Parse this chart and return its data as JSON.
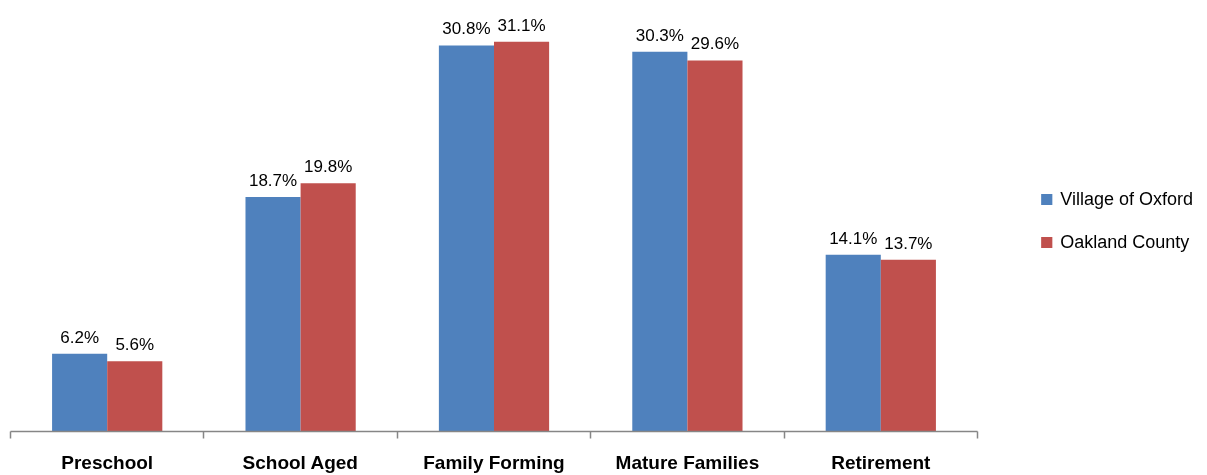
{
  "chart_data": {
    "type": "bar",
    "categories": [
      "Preschool",
      "School Aged",
      "Family Forming",
      "Mature Families",
      "Retirement"
    ],
    "series": [
      {
        "name": "Village of Oxford",
        "color": "#4f81bd",
        "values": [
          6.2,
          18.7,
          30.8,
          30.3,
          14.1
        ],
        "value_labels": [
          "6.2%",
          "18.7%",
          "30.8%",
          "30.3%",
          "14.1%"
        ]
      },
      {
        "name": "Oakland County",
        "color": "#c0504d",
        "values": [
          5.6,
          19.8,
          31.1,
          29.6,
          13.7
        ],
        "value_labels": [
          "5.6%",
          "19.8%",
          "31.1%",
          "29.6%",
          "13.7%"
        ]
      }
    ],
    "legend": "right",
    "grid": false
  }
}
